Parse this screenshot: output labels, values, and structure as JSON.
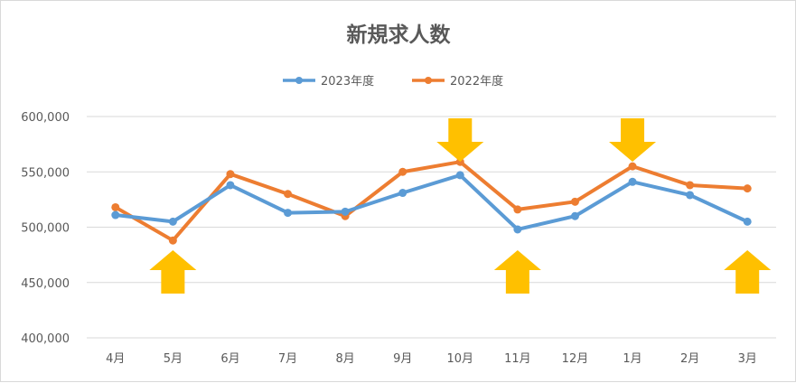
{
  "chart_data": {
    "type": "line",
    "title": "新規求人数",
    "categories": [
      "4月",
      "5月",
      "6月",
      "7月",
      "8月",
      "9月",
      "10月",
      "11月",
      "12月",
      "1月",
      "2月",
      "3月"
    ],
    "series": [
      {
        "name": "2023年度",
        "color": "#5b9bd5",
        "values": [
          511000,
          505000,
          538000,
          513000,
          514000,
          531000,
          547000,
          498000,
          510000,
          541000,
          529000,
          505000
        ]
      },
      {
        "name": "2022年度",
        "color": "#ed7d31",
        "values": [
          518000,
          488000,
          548000,
          530000,
          510000,
          550000,
          559000,
          516000,
          523000,
          555000,
          538000,
          535000
        ]
      }
    ],
    "ylim": [
      400000,
      600000
    ],
    "yticks": [
      "400,000",
      "450,000",
      "500,000",
      "550,000",
      "600,000"
    ],
    "xlabel": "",
    "ylabel": "",
    "grid": true,
    "legend": "top",
    "annotations": [
      {
        "type": "arrow-up",
        "category": "5月",
        "color": "#ffc000"
      },
      {
        "type": "arrow-down",
        "category": "10月",
        "color": "#ffc000"
      },
      {
        "type": "arrow-up",
        "category": "11月",
        "color": "#ffc000"
      },
      {
        "type": "arrow-down",
        "category": "1月",
        "color": "#ffc000"
      },
      {
        "type": "arrow-up",
        "category": "3月",
        "color": "#ffc000"
      }
    ]
  }
}
